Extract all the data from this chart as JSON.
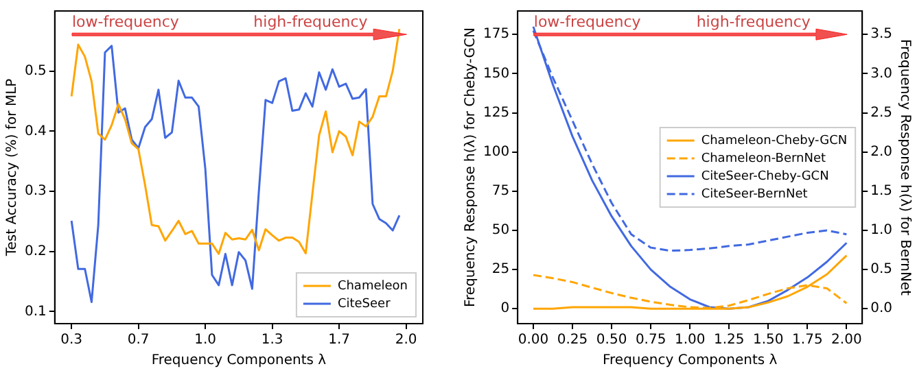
{
  "chart_data": [
    {
      "type": "line",
      "xlabel": "Frequency Components λ",
      "ylabel": "Test Accuracy (%) for MLP",
      "annotations": [
        "low-frequency",
        "high-frequency"
      ],
      "categories": [
        "0.3",
        null,
        null,
        null,
        null,
        null,
        null,
        null,
        null,
        null,
        "0.7",
        null,
        null,
        null,
        null,
        null,
        null,
        null,
        null,
        null,
        "1.0",
        null,
        null,
        null,
        null,
        null,
        null,
        null,
        null,
        null,
        "1.3",
        null,
        null,
        null,
        null,
        null,
        null,
        null,
        null,
        null,
        "1.7",
        null,
        null,
        null,
        null,
        null,
        null,
        null,
        null,
        null,
        "2.0"
      ],
      "series": [
        {
          "name": "Chameleon",
          "color": "#ffa500",
          "values": [
            0.458,
            0.544,
            0.524,
            0.483,
            0.396,
            0.386,
            0.41,
            0.445,
            0.42,
            0.38,
            0.37,
            0.31,
            0.244,
            0.242,
            0.218,
            0.234,
            0.251,
            0.229,
            0.234,
            0.213,
            0.213,
            0.213,
            0.196,
            0.231,
            0.22,
            0.222,
            0.22,
            0.236,
            0.202,
            0.237,
            0.227,
            0.218,
            0.223,
            0.223,
            0.216,
            0.197,
            0.296,
            0.393,
            0.433,
            0.365,
            0.4,
            0.391,
            0.36,
            0.416,
            0.408,
            0.424,
            0.458,
            0.458,
            0.5,
            0.57,
            null
          ]
        },
        {
          "name": "CiteSeer",
          "color": "#4169e1",
          "values": [
            0.251,
            0.171,
            0.171,
            0.116,
            0.244,
            0.531,
            0.542,
            0.431,
            0.438,
            0.386,
            0.372,
            0.407,
            0.42,
            0.469,
            0.389,
            0.398,
            0.484,
            0.456,
            0.456,
            0.441,
            0.337,
            0.161,
            0.144,
            0.196,
            0.144,
            0.199,
            0.185,
            0.138,
            0.3,
            0.452,
            0.447,
            0.483,
            0.488,
            0.434,
            0.436,
            0.463,
            0.441,
            0.498,
            0.469,
            0.503,
            0.474,
            0.479,
            0.454,
            0.456,
            0.47,
            0.279,
            0.254,
            0.247,
            0.235,
            0.26,
            null
          ]
        }
      ],
      "ylim": [
        0.08,
        0.6
      ],
      "yticks": [
        0.1,
        0.2,
        0.3,
        0.4,
        0.5
      ],
      "grid": false,
      "legend": "bottom right"
    },
    {
      "type": "line",
      "xlabel": "Frequency Components λ",
      "ylabel": "Frequency Response h(λ) for Cheby-GCN",
      "y2label": "Frequency Response h(λ) for BernNet",
      "annotations": [
        "low-frequency",
        "high-frequency"
      ],
      "x": [
        0,
        0.125,
        0.25,
        0.375,
        0.5,
        0.625,
        0.75,
        0.875,
        1.0,
        1.125,
        1.25,
        1.375,
        1.5,
        1.625,
        1.75,
        1.875,
        2.0
      ],
      "series": [
        {
          "name": "Chameleon-Cheby-GCN",
          "color": "#ffa500",
          "values": [
            0,
            0,
            1,
            1,
            1,
            1,
            0,
            0,
            0,
            0,
            0,
            1,
            4,
            8,
            14,
            22,
            34
          ]
        },
        {
          "name": "Chameleon-BernNet",
          "color": "#ffa500",
          "axis": "y2",
          "line_style": "dashed",
          "values": [
            0.43,
            0.39,
            0.34,
            0.27,
            0.2,
            0.14,
            0.09,
            0.05,
            0.02,
            0.01,
            0.04,
            0.11,
            0.19,
            0.26,
            0.3,
            0.26,
            0.07
          ]
        },
        {
          "name": "CiteSeer-Cheby-GCN",
          "color": "#4169e1",
          "values": [
            180,
            143,
            110,
            82,
            59,
            40,
            25,
            14,
            6,
            1,
            0,
            1,
            5,
            12,
            20,
            30,
            42
          ]
        },
        {
          "name": "CiteSeer-BernNet",
          "color": "#4169e1",
          "axis": "y2",
          "line_style": "dashed",
          "values": [
            3.55,
            2.95,
            2.4,
            1.85,
            1.35,
            0.95,
            0.78,
            0.74,
            0.75,
            0.77,
            0.8,
            0.82,
            0.87,
            0.92,
            0.97,
            1.0,
            0.95
          ]
        }
      ],
      "xlim": [
        -0.1,
        2.1
      ],
      "xticks": [
        {
          "value": 0,
          "label": "0.00"
        },
        {
          "value": 0.25,
          "label": "0.25"
        },
        {
          "value": 0.5,
          "label": "0.50"
        },
        {
          "value": 0.75,
          "label": "0.75"
        },
        {
          "value": 1,
          "label": "1.00"
        },
        {
          "value": 1.25,
          "label": "1.25"
        },
        {
          "value": 1.5,
          "label": "1.50"
        },
        {
          "value": 1.75,
          "label": "1.75"
        },
        {
          "value": 2,
          "label": "2.00"
        }
      ],
      "ylim": [
        -9.5,
        190
      ],
      "yticks": [
        0,
        25,
        50,
        75,
        100,
        125,
        150,
        175
      ],
      "y2lim": [
        -0.19,
        3.8
      ],
      "y2ticks": [
        {
          "value": 0,
          "label": "0.0"
        },
        0.5,
        {
          "value": 1,
          "label": "1.0"
        },
        1.5,
        {
          "value": 2,
          "label": "2.0"
        },
        2.5,
        {
          "value": 3,
          "label": "3.0"
        },
        3.5
      ],
      "grid": false,
      "legend": "right"
    }
  ]
}
